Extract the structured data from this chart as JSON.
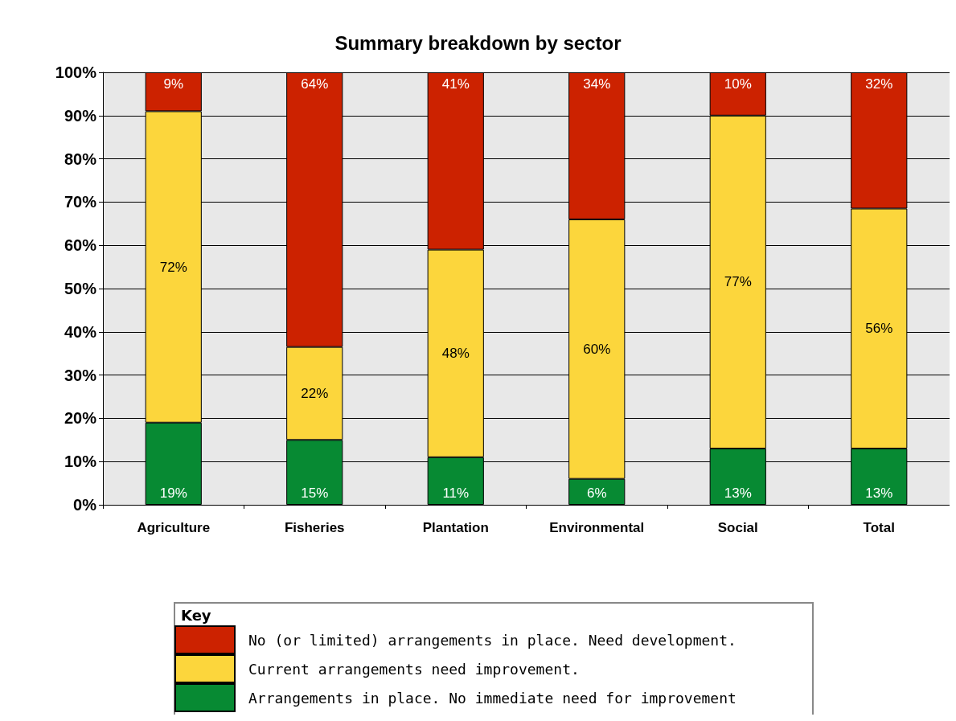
{
  "chart_data": {
    "type": "bar",
    "stacked": true,
    "title": "Summary breakdown by sector",
    "legend_title": "Key",
    "categories": [
      "Agriculture",
      "Fisheries",
      "Plantation",
      "Environmental",
      "Social",
      "Total"
    ],
    "series": [
      {
        "name": "Arrangements in place. No immediate need for improvement",
        "color": "#078a33",
        "values": [
          19,
          15,
          11,
          6,
          13,
          13
        ],
        "value_labels": [
          "19%",
          "15%",
          "11%",
          "6%",
          "13%",
          "13%"
        ]
      },
      {
        "name": "Current arrangements need improvement.",
        "color": "#fcd63c",
        "values": [
          72,
          21.5,
          48,
          60,
          77,
          55.5
        ],
        "value_labels": [
          "72%",
          "22%",
          "48%",
          "60%",
          "77%",
          "56%"
        ]
      },
      {
        "name": "No (or limited) arrangements in place. Need development.",
        "color": "#cc2200",
        "values": [
          9,
          63.5,
          41,
          34,
          10,
          31.5
        ],
        "value_labels": [
          "9%",
          "64%",
          "41%",
          "34%",
          "10%",
          "32%"
        ]
      }
    ],
    "ylim": [
      0,
      100
    ],
    "yticks": [
      {
        "value": 0,
        "label": "0%"
      },
      {
        "value": 10,
        "label": "10%"
      },
      {
        "value": 20,
        "label": "20%"
      },
      {
        "value": 30,
        "label": "30%"
      },
      {
        "value": 40,
        "label": "40%"
      },
      {
        "value": 50,
        "label": "50%"
      },
      {
        "value": 60,
        "label": "60%"
      },
      {
        "value": 70,
        "label": "70%"
      },
      {
        "value": 80,
        "label": "80%"
      },
      {
        "value": 90,
        "label": "90%"
      },
      {
        "value": 100,
        "label": "100%"
      }
    ],
    "grid": "y",
    "legend": "bottom"
  }
}
